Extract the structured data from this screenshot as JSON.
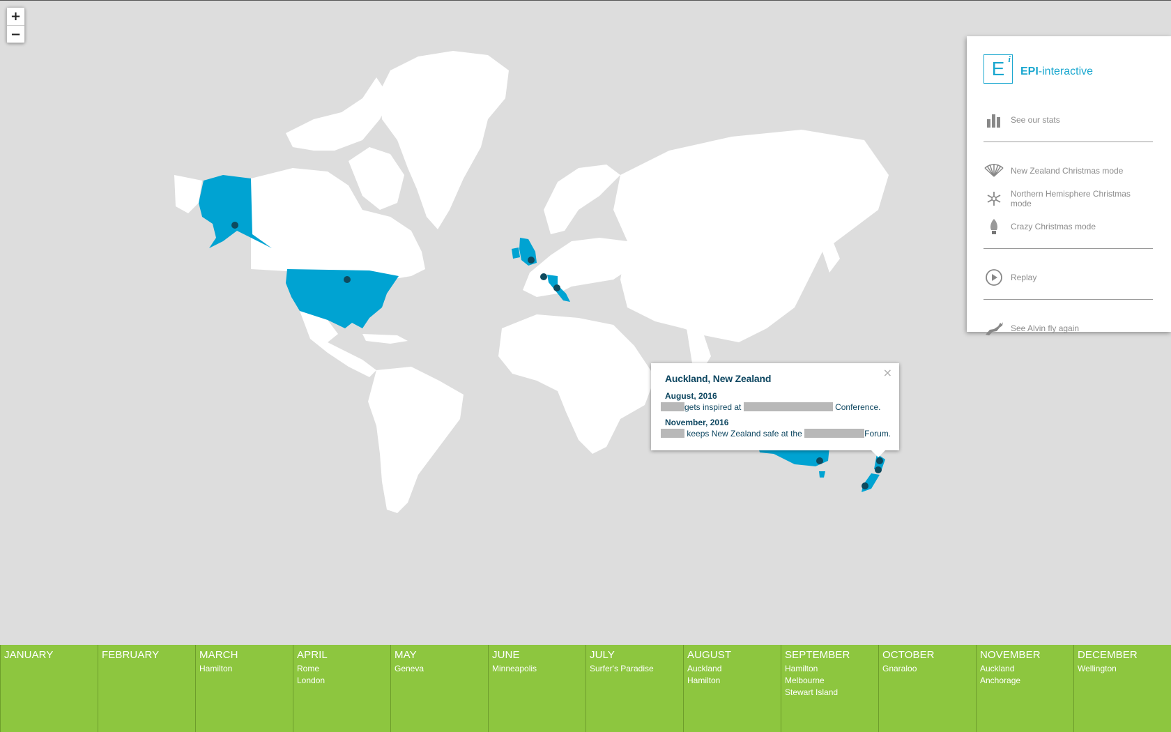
{
  "zoom": {
    "in_label": "+",
    "out_label": "−"
  },
  "panel": {
    "logo_letter": "E",
    "logo_sup": "i",
    "logo_brand": "EPI",
    "logo_suffix": "-interactive",
    "items": [
      {
        "label": "See our stats",
        "icon": "bar-chart-icon"
      },
      {
        "label": "New Zealand Christmas mode",
        "icon": "fan-icon"
      },
      {
        "label": "Northern Hemisphere Christmas mode",
        "icon": "snowflake-icon"
      },
      {
        "label": "Crazy Christmas mode",
        "icon": "christmas-light-icon"
      },
      {
        "label": "Replay",
        "icon": "replay-icon"
      },
      {
        "label": "See Alvin fly again",
        "icon": "flying-reindeer-icon"
      }
    ]
  },
  "popup": {
    "title": "Auckland, New Zealand",
    "close": "×",
    "entries": [
      {
        "date": "August, 2016",
        "text_a": "gets inspired at",
        "text_b": "Conference."
      },
      {
        "date": "November, 2016",
        "text_a": "keeps New Zealand safe at the",
        "text_b": "Forum."
      }
    ]
  },
  "timeline": [
    {
      "month": "JANUARY",
      "places": []
    },
    {
      "month": "FEBRUARY",
      "places": []
    },
    {
      "month": "MARCH",
      "places": [
        "Hamilton"
      ]
    },
    {
      "month": "APRIL",
      "places": [
        "Rome",
        "London"
      ]
    },
    {
      "month": "MAY",
      "places": [
        "Geneva"
      ]
    },
    {
      "month": "JUNE",
      "places": [
        "Minneapolis"
      ]
    },
    {
      "month": "JULY",
      "places": [
        "Surfer's Paradise"
      ]
    },
    {
      "month": "AUGUST",
      "places": [
        "Auckland",
        "Hamilton"
      ]
    },
    {
      "month": "SEPTEMBER",
      "places": [
        "Hamilton",
        "Melbourne",
        "Stewart Island"
      ]
    },
    {
      "month": "OCTOBER",
      "places": [
        "Gnaraloo"
      ]
    },
    {
      "month": "NOVEMBER",
      "places": [
        "Auckland",
        "Anchorage"
      ]
    },
    {
      "month": "DECEMBER",
      "places": [
        "Wellington"
      ]
    }
  ],
  "colors": {
    "highlight": "#00a3d2",
    "marker": "#0e4a5e",
    "land": "#ffffff",
    "sea": "#dddddd",
    "timeline": "#8dc63f"
  }
}
